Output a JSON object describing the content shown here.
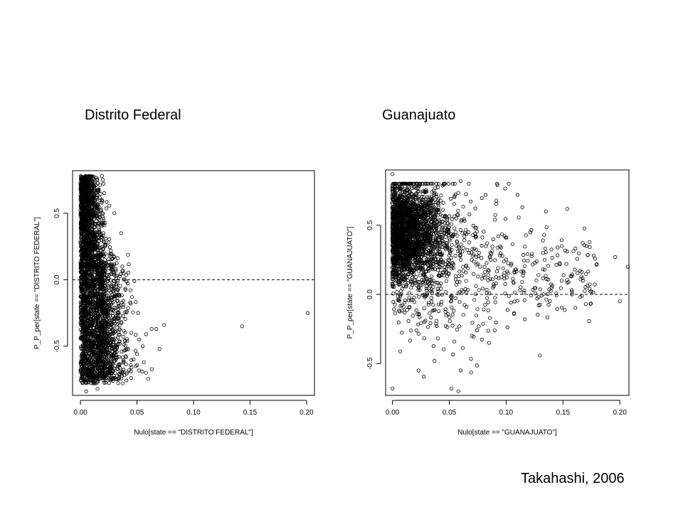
{
  "panel_titles": [
    "Distrito Federal",
    "Guanajuato"
  ],
  "credit": "Takahashi, 2006",
  "chart_data": [
    {
      "type": "scatter",
      "title": "",
      "xlabel": "Nulo[state == \"DISTRITO FEDERAL\"]",
      "ylabel": "P_P_per[state == \"DISTRITO FEDERAL\"]",
      "xlim": [
        -0.007,
        0.207
      ],
      "ylim": [
        -0.87,
        0.82
      ],
      "xticks": [
        0.0,
        0.05,
        0.1,
        0.15,
        0.2
      ],
      "xtick_labels": [
        "0.00",
        "0.05",
        "0.10",
        "0.15",
        "0.20"
      ],
      "yticks": [
        -0.5,
        0.0,
        0.5
      ],
      "ytick_labels": [
        "-0.5",
        "0.0",
        "0.5"
      ],
      "reference_line": {
        "y": 0.0,
        "style": "dashed"
      },
      "marker": "open-circle",
      "grid": false,
      "outliers": [
        {
          "x": 0.201,
          "y": -0.25
        },
        {
          "x": 0.143,
          "y": -0.35
        },
        {
          "x": 0.074,
          "y": -0.34
        },
        {
          "x": 0.07,
          "y": -0.52
        },
        {
          "x": 0.067,
          "y": -0.37
        },
        {
          "x": 0.063,
          "y": -0.37
        },
        {
          "x": 0.058,
          "y": -0.7
        },
        {
          "x": 0.058,
          "y": -0.41
        },
        {
          "x": 0.056,
          "y": -0.62
        },
        {
          "x": 0.055,
          "y": -0.5
        },
        {
          "x": 0.052,
          "y": -0.45
        },
        {
          "x": 0.05,
          "y": -0.56
        },
        {
          "x": 0.049,
          "y": -0.65
        },
        {
          "x": 0.047,
          "y": -0.6
        },
        {
          "x": 0.045,
          "y": -0.4
        },
        {
          "x": 0.036,
          "y": 0.35
        },
        {
          "x": 0.03,
          "y": 0.5
        },
        {
          "x": 0.019,
          "y": 0.78
        },
        {
          "x": 0.015,
          "y": -0.82
        },
        {
          "x": 0.005,
          "y": -0.84
        }
      ]
    },
    {
      "type": "scatter",
      "title": "",
      "xlabel": "Nulo[state == \"GUANAJUATO\"]",
      "ylabel": "P_P_per[state == \"GUANAJUATO\"]",
      "xlim": [
        -0.006,
        0.208
      ],
      "ylim": [
        -0.73,
        0.9
      ],
      "xticks": [
        0.0,
        0.05,
        0.1,
        0.15,
        0.2
      ],
      "xtick_labels": [
        "0.00",
        "0.05",
        "0.10",
        "0.15",
        "0.20"
      ],
      "yticks": [
        -0.5,
        0.0,
        0.5
      ],
      "ytick_labels": [
        "-0.5",
        "0.0",
        "0.5"
      ],
      "reference_line": {
        "y": 0.0,
        "style": "dashed"
      },
      "marker": "open-circle",
      "grid": false,
      "outliers": [
        {
          "x": 0.207,
          "y": 0.2
        },
        {
          "x": 0.2,
          "y": -0.05
        },
        {
          "x": 0.196,
          "y": 0.27
        },
        {
          "x": 0.177,
          "y": 0.28
        },
        {
          "x": 0.175,
          "y": 0.02
        },
        {
          "x": 0.17,
          "y": -0.07
        },
        {
          "x": 0.165,
          "y": 0.17
        },
        {
          "x": 0.158,
          "y": 0.0
        },
        {
          "x": 0.153,
          "y": 0.22
        },
        {
          "x": 0.135,
          "y": 0.6
        },
        {
          "x": 0.14,
          "y": 0.05
        },
        {
          "x": 0.11,
          "y": 0.72
        },
        {
          "x": 0.092,
          "y": 0.8
        },
        {
          "x": 0.082,
          "y": 0.72
        },
        {
          "x": 0.085,
          "y": -0.35
        },
        {
          "x": 0.06,
          "y": 0.82
        },
        {
          "x": 0.058,
          "y": -0.7
        },
        {
          "x": 0.052,
          "y": -0.68
        },
        {
          "x": 0.0,
          "y": -0.68
        },
        {
          "x": 0.0,
          "y": 0.87
        },
        {
          "x": 0.023,
          "y": -0.55
        },
        {
          "x": 0.06,
          "y": -0.55
        },
        {
          "x": 0.037,
          "y": -0.48
        },
        {
          "x": 0.07,
          "y": -0.3
        }
      ]
    }
  ]
}
